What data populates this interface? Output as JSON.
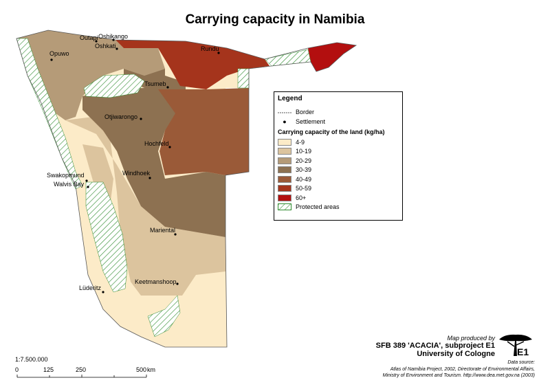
{
  "title": "Carrying capacity in Namibia",
  "legend": {
    "title": "Legend",
    "border_label": "Border",
    "settlement_label": "Settlement",
    "classes_title": "Carrying capacity of the land (kg/ha)",
    "classes": [
      {
        "label": "4-9",
        "color": "#fcebc8"
      },
      {
        "label": "10-19",
        "color": "#dcc49e"
      },
      {
        "label": "20-29",
        "color": "#b59b78"
      },
      {
        "label": "30-39",
        "color": "#8d7151"
      },
      {
        "label": "40-49",
        "color": "#9a5a38"
      },
      {
        "label": "50-59",
        "color": "#a5341c"
      },
      {
        "label": "60+",
        "color": "#b30f0f"
      }
    ],
    "protected_label": "Protected areas",
    "protected_color": "#2e8b2e"
  },
  "settlements": [
    {
      "name": "Outapi"
    },
    {
      "name": "Oshikango"
    },
    {
      "name": "Oshkati"
    },
    {
      "name": "Opuwo"
    },
    {
      "name": "Rundu"
    },
    {
      "name": "Tsumeb"
    },
    {
      "name": "Otjiwarongo"
    },
    {
      "name": "Hochfeld"
    },
    {
      "name": "Swakopmund"
    },
    {
      "name": "Walvis Bay"
    },
    {
      "name": "Windhoek"
    },
    {
      "name": "Mariental"
    },
    {
      "name": "Lüderitz"
    },
    {
      "name": "Keetmanshoop"
    }
  ],
  "credit": {
    "produced_by": "Map produced by",
    "line1": "SFB 389 'ACACIA', subproject E1",
    "line2": "University of Cologne",
    "logo_text": "E1"
  },
  "source": {
    "line1": "Data source:",
    "line2": "Atlas of Namibia Project, 2002, Directorate of Environmental Affairs,",
    "line3": "Ministry of Environment and Tourism. http://www.dea.met.gov.na (2003)"
  },
  "scale": {
    "ratio": "1:7.500.000",
    "ticks": [
      "0",
      "125",
      "250",
      "500"
    ],
    "unit": "km"
  }
}
